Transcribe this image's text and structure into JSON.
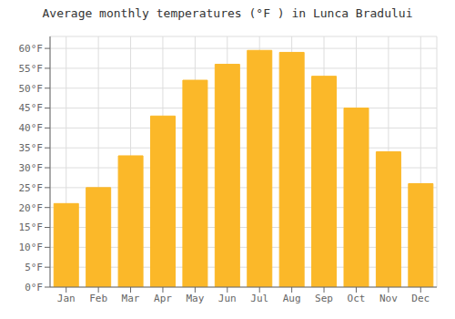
{
  "chart_data": {
    "type": "bar",
    "title": "Average monthly temperatures (°F ) in Lunca Bradului",
    "categories": [
      "Jan",
      "Feb",
      "Mar",
      "Apr",
      "May",
      "Jun",
      "Jul",
      "Aug",
      "Sep",
      "Oct",
      "Nov",
      "Dec"
    ],
    "values": [
      21,
      25,
      33,
      43,
      52,
      56,
      59.5,
      59,
      53,
      45,
      34,
      26
    ],
    "color": "#FBB829",
    "ylim": [
      0,
      63
    ],
    "yticks": [
      {
        "value": 0,
        "label": "0°F"
      },
      {
        "value": 5,
        "label": "5°F"
      },
      {
        "value": 10,
        "label": "10°F"
      },
      {
        "value": 15,
        "label": "15°F"
      },
      {
        "value": 20,
        "label": "20°F"
      },
      {
        "value": 25,
        "label": "25°F"
      },
      {
        "value": 30,
        "label": "30°F"
      },
      {
        "value": 35,
        "label": "35°F"
      },
      {
        "value": 40,
        "label": "40°F"
      },
      {
        "value": 45,
        "label": "45°F"
      },
      {
        "value": 50,
        "label": "50°F"
      },
      {
        "value": 55,
        "label": "55°F"
      },
      {
        "value": 60,
        "label": "60°F"
      }
    ],
    "grid": true
  }
}
